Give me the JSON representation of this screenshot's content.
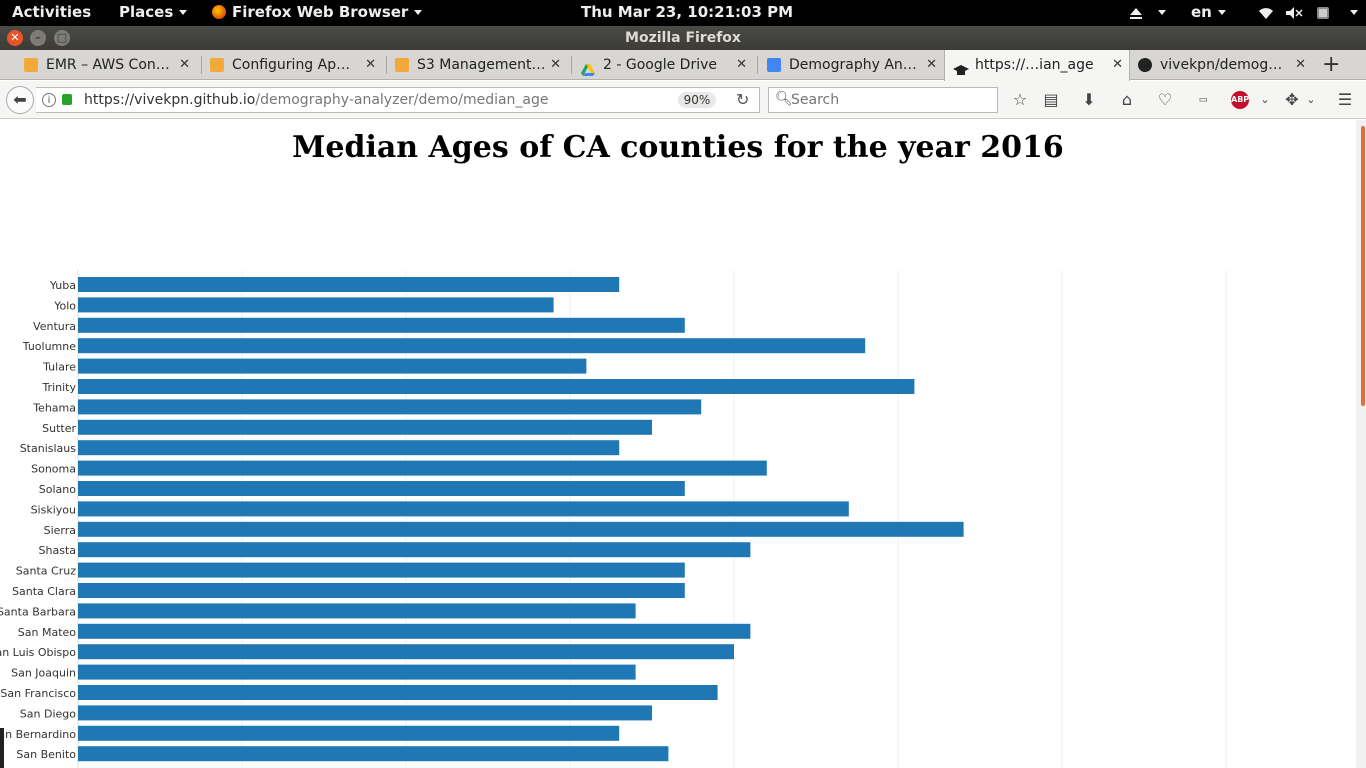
{
  "topbar": {
    "activities": "Activities",
    "places": "Places",
    "app_name": "Firefox Web Browser",
    "clock": "Thu Mar 23, 10:21:03 PM",
    "lang": "en"
  },
  "window": {
    "title": "Mozilla Firefox"
  },
  "tabs": [
    {
      "label": "EMR – AWS Con…",
      "icon_color": "#f2a83b"
    },
    {
      "label": "Configuring Ap…",
      "icon_color": "#f2a83b"
    },
    {
      "label": "S3 Management…",
      "icon_color": "#f2a83b"
    },
    {
      "label": "2 - Google Drive",
      "icon_color": "#1fa463"
    },
    {
      "label": "Demography An…",
      "icon_color": "#4285f4"
    },
    {
      "label": "https://…ian_age",
      "icon_color": "#222222",
      "active": true
    },
    {
      "label": "vivekpn/demog…",
      "icon_color": "#222222"
    }
  ],
  "navbar": {
    "url_host": "https://vivekpn.github.io",
    "url_path": "/demography-analyzer/demo/median_age",
    "zoom": "90%",
    "search_placeholder": "Search",
    "adblock_label": "ABP"
  },
  "page": {
    "title": "Median Ages of CA counties for the year 2016"
  },
  "chart_data": {
    "type": "bar",
    "orientation": "horizontal",
    "title": "Median Ages of CA counties for the year 2016",
    "bar_color": "#1f77b4",
    "grid": true,
    "categories": [
      "Yuba",
      "Yolo",
      "Ventura",
      "Tuolumne",
      "Tulare",
      "Trinity",
      "Tehama",
      "Sutter",
      "Stanislaus",
      "Sonoma",
      "Solano",
      "Siskiyou",
      "Sierra",
      "Shasta",
      "Santa Cruz",
      "Santa Clara",
      "Santa Barbara",
      "San Mateo",
      "San Luis Obispo",
      "San Joaquin",
      "San Francisco",
      "San Diego",
      "San Bernardino",
      "San Benito"
    ],
    "values": [
      33,
      29,
      37,
      48,
      31,
      51,
      38,
      35,
      33,
      42,
      37,
      47,
      54,
      41,
      37,
      37,
      34,
      41,
      40,
      34,
      39,
      35,
      33,
      36
    ],
    "xlim": [
      0,
      70
    ]
  }
}
